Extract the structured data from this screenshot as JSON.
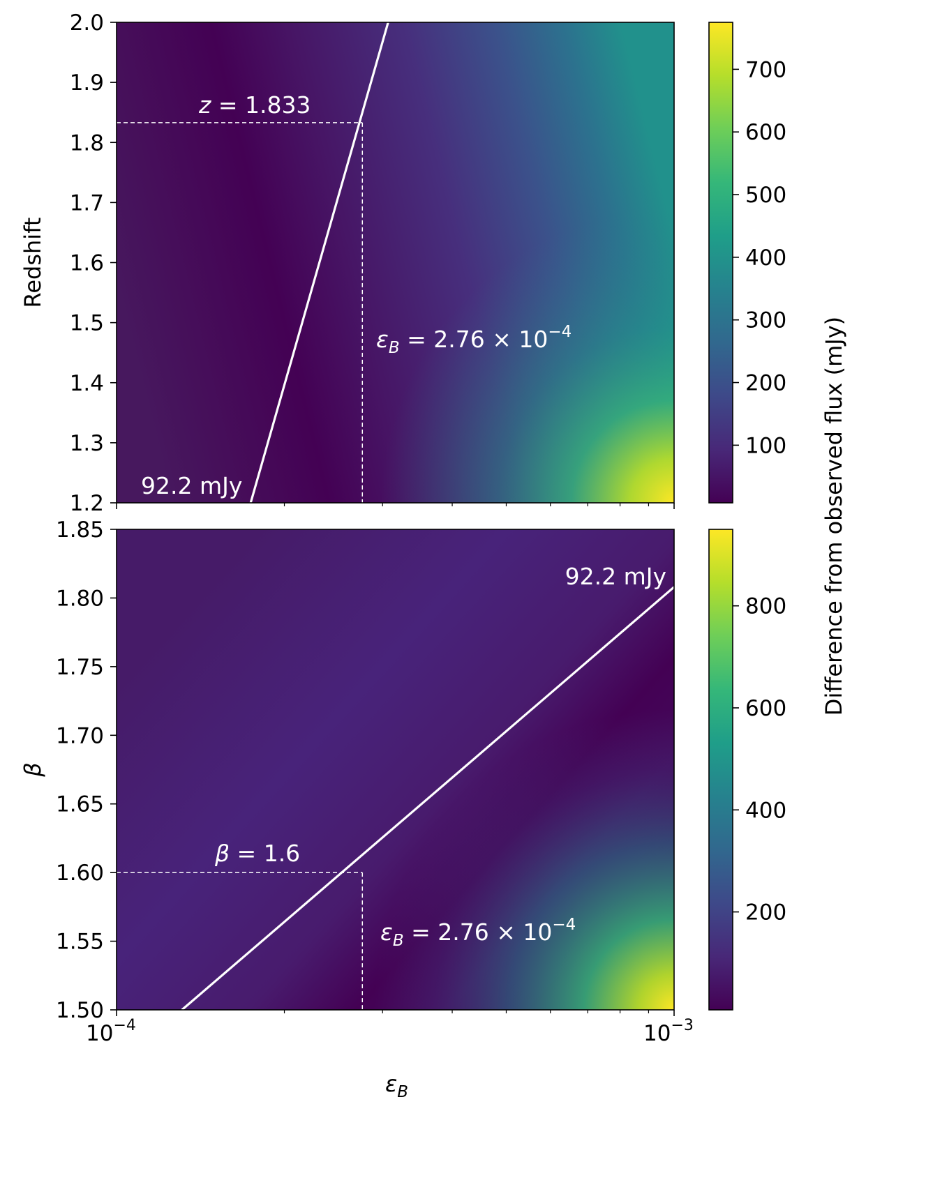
{
  "colormap": [
    "#440154",
    "#482878",
    "#3e4989",
    "#31688e",
    "#26828e",
    "#1f9e89",
    "#35b779",
    "#6ece58",
    "#b5de2b",
    "#fde725"
  ],
  "colors": {
    "contour_line": "#ffffff",
    "axes": "#000000"
  },
  "shared_x": {
    "label_main": "ε",
    "label_sub": "B",
    "scale": "log",
    "lim": [
      0.0001,
      0.001
    ],
    "tick_labels": [
      {
        "value": 0.0001,
        "base": "10",
        "exp": "−4"
      },
      {
        "value": 0.001,
        "base": "10",
        "exp": "−3"
      }
    ],
    "minor_ticks": [
      0.0002,
      0.0003,
      0.0004,
      0.0005,
      0.0006,
      0.0007,
      0.0008,
      0.0009
    ]
  },
  "colorbar_label": "Difference from observed flux (mJy)",
  "chart_data": [
    {
      "type": "heatmap",
      "ylabel": "Redshift",
      "ylim": [
        1.2,
        2.0
      ],
      "y_ticks": [
        {
          "value": 1.2,
          "label": "1.2"
        },
        {
          "value": 1.3,
          "label": "1.3"
        },
        {
          "value": 1.4,
          "label": "1.4"
        },
        {
          "value": 1.5,
          "label": "1.5"
        },
        {
          "value": 1.6,
          "label": "1.6"
        },
        {
          "value": 1.7,
          "label": "1.7"
        },
        {
          "value": 1.8,
          "label": "1.8"
        },
        {
          "value": 1.9,
          "label": "1.9"
        },
        {
          "value": 2.0,
          "label": "2.0"
        }
      ],
      "contour": {
        "label": "92.2 mJy",
        "points": [
          [
            0.000174,
            1.2
          ],
          [
            0.000307,
            2.0
          ]
        ]
      },
      "marker": {
        "x": 0.000276,
        "y": 1.833,
        "y_label_main": "z",
        "y_label_value": " = 1.833",
        "x_label_main": "ε",
        "x_label_sub": "B",
        "x_label_value": " = 2.76 × 10",
        "x_label_exp": "−4"
      },
      "colorbar": {
        "range": [
          8,
          775
        ],
        "ticks": [
          {
            "value": 100,
            "label": "100"
          },
          {
            "value": 200,
            "label": "200"
          },
          {
            "value": 300,
            "label": "300"
          },
          {
            "value": 400,
            "label": "400"
          },
          {
            "value": 500,
            "label": "500"
          },
          {
            "value": 600,
            "label": "600"
          },
          {
            "value": 700,
            "label": "700"
          }
        ]
      }
    },
    {
      "type": "heatmap",
      "ylabel": "β",
      "ylim": [
        1.5,
        1.85
      ],
      "y_ticks": [
        {
          "value": 1.5,
          "label": "1.50"
        },
        {
          "value": 1.55,
          "label": "1.55"
        },
        {
          "value": 1.6,
          "label": "1.60"
        },
        {
          "value": 1.65,
          "label": "1.65"
        },
        {
          "value": 1.7,
          "label": "1.70"
        },
        {
          "value": 1.75,
          "label": "1.75"
        },
        {
          "value": 1.8,
          "label": "1.80"
        },
        {
          "value": 1.85,
          "label": "1.85"
        }
      ],
      "contour": {
        "label": "92.2 mJy",
        "points": [
          [
            0.000131,
            1.5
          ],
          [
            0.001,
            1.808
          ]
        ]
      },
      "marker": {
        "x": 0.000276,
        "y": 1.6,
        "y_label_main": "β",
        "y_label_value": " = 1.6",
        "x_label_main": "ε",
        "x_label_sub": "B",
        "x_label_value": " = 2.76 × 10",
        "x_label_exp": "−4"
      },
      "colorbar": {
        "range": [
          8,
          950
        ],
        "ticks": [
          {
            "value": 200,
            "label": "200"
          },
          {
            "value": 400,
            "label": "400"
          },
          {
            "value": 600,
            "label": "600"
          },
          {
            "value": 800,
            "label": "800"
          }
        ]
      }
    }
  ]
}
